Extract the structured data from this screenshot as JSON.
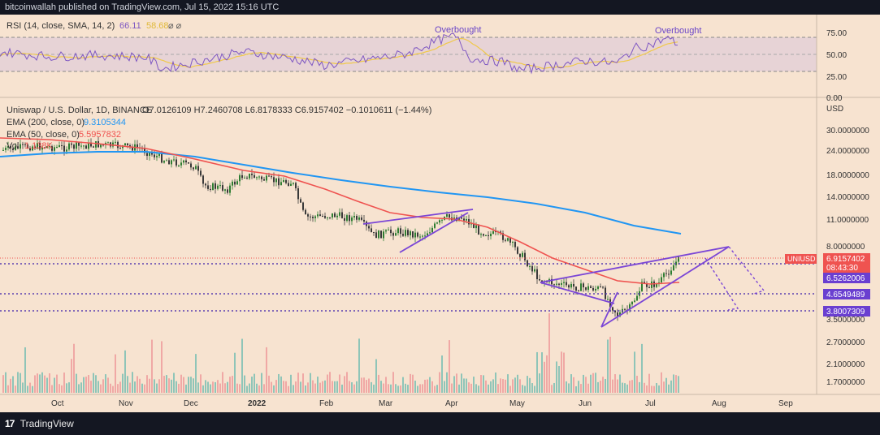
{
  "header": {
    "publisher_text": "bitcoinwallah published on TradingView.com, Jul 15, 2022 15:16 UTC"
  },
  "footer": {
    "brand": "TradingView",
    "logo_text": "17"
  },
  "rsi_pane": {
    "legend_name": "RSI (14, close, SMA, 14, 2)",
    "legend_rsi_value": "66.11",
    "legend_sma_value": "58.68",
    "legend_icons": "⌀ ⌀",
    "annotations": [
      "Overbought",
      "Overbought"
    ],
    "levels": [
      "75.00",
      "50.00",
      "25.00",
      "0.00"
    ],
    "band": [
      30,
      70
    ]
  },
  "price_pane": {
    "legend_title": "Uniswap / U.S. Dollar, 1D, BINANCE",
    "legend_ohlc": "O7.0126109 H7.2460708 L6.8178333 C6.9157402 −0.1010611 (−1.44%)",
    "ema200_label": "EMA (200, close, 0)",
    "ema200_value": "9.3105344",
    "ema50_label": "EMA (50, close, 0)",
    "ema50_value": "5.5957832",
    "vol_label": "Vol",
    "vol_value": "1.138K",
    "currency": "USD",
    "y_ticks": [
      "30.0000000",
      "24.0000000",
      "18.0000000",
      "14.0000000",
      "11.0000000",
      "8.0000000",
      "3.5000000",
      "2.7000000",
      "2.1000000",
      "1.7000000"
    ],
    "price_tag_symbol": "UNIUSD",
    "price_tag_value": "6.9157402",
    "price_tag_countdown": "08:43:30",
    "level_tags": [
      "6.5262006",
      "4.6549489",
      "3.8007309"
    ],
    "x_ticks": [
      "Oct",
      "Nov",
      "Dec",
      "2022",
      "Feb",
      "Mar",
      "Apr",
      "May",
      "Jun",
      "Jul",
      "Aug",
      "Sep"
    ]
  },
  "colors": {
    "background": "#f7e3d0",
    "rsi_line": "#7e57c2",
    "rsi_sma": "#f0c94a",
    "ema200": "#2196f3",
    "ema50": "#ef5350",
    "candle_up": "#2e7d32",
    "candle_down": "#3a3a3a",
    "pattern": "#7b46d6",
    "volume_up": "#8fc5b8",
    "volume_down": "#f0a8a5"
  },
  "chart_data": {
    "type": "line",
    "title": "Uniswap / U.S. Dollar, 1D, BINANCE",
    "ylabel": "USD",
    "x": [
      "Oct",
      "Nov",
      "Dec",
      "2022",
      "Feb",
      "Mar",
      "Apr",
      "May",
      "Jun",
      "Jul",
      "Aug",
      "Sep"
    ],
    "series": [
      {
        "name": "EMA (200, close, 0)",
        "values": [
          23,
          23.5,
          22,
          19,
          17,
          15.3,
          13.8,
          12,
          10.8,
          9.6,
          null,
          null
        ]
      },
      {
        "name": "EMA (50, close, 0)",
        "values": [
          26,
          25.5,
          22,
          17.5,
          14,
          11.5,
          10.3,
          8.8,
          5.8,
          5.5,
          null,
          null
        ]
      },
      {
        "name": "Uniswap / U.S. Dollar",
        "values": [
          24,
          25,
          19,
          17,
          10.5,
          9,
          11.8,
          8,
          5.4,
          6.9,
          null,
          null
        ]
      }
    ],
    "levels": [
      6.5262006,
      4.6549489,
      3.8007309
    ],
    "last_price": 6.9157402,
    "rsi_last": 66.11,
    "rsi_sma_last": 58.68
  }
}
